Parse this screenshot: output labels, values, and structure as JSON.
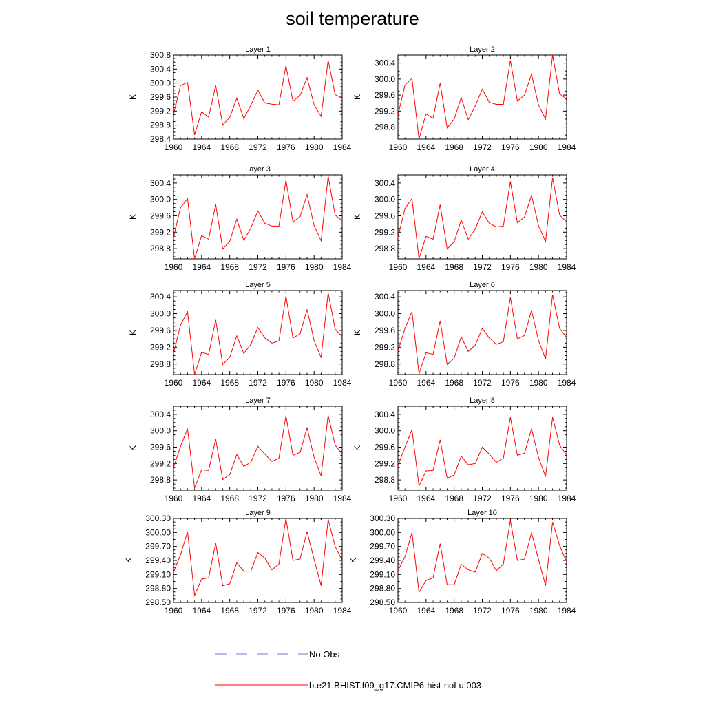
{
  "title": "soil temperature",
  "legend": {
    "items": [
      {
        "label": "No Obs",
        "color": "#7777cc",
        "style": "dashed"
      },
      {
        "label": "b.e21.BHIST.f09_g17.CMIP6-hist-noLu.003",
        "color": "#ff0000",
        "style": "solid"
      }
    ]
  },
  "chart_data": [
    {
      "type": "line",
      "title": "Layer 1",
      "ylabel": "K",
      "xlim": [
        1960,
        1984
      ],
      "ylim": [
        298.4,
        300.8
      ],
      "xticks": [
        "1960",
        "1964",
        "1968",
        "1972",
        "1976",
        "1980",
        "1984"
      ],
      "yticks": [
        "298.4",
        "298.8",
        "299.2",
        "299.6",
        "300.0",
        "300.4",
        "300.8"
      ],
      "series": [
        {
          "color": "#ff0000",
          "x": [
            1960,
            1961,
            1962,
            1963,
            1964,
            1965,
            1966,
            1967,
            1968,
            1969,
            1970,
            1971,
            1972,
            1973,
            1974,
            1975,
            1976,
            1977,
            1978,
            1979,
            1980,
            1981,
            1982,
            1983,
            1984
          ],
          "y": [
            299.1,
            299.93,
            300.02,
            298.52,
            299.18,
            299.03,
            299.93,
            298.8,
            299.02,
            299.57,
            298.98,
            299.37,
            299.8,
            299.43,
            299.4,
            299.38,
            300.5,
            299.48,
            299.65,
            300.15,
            299.38,
            299.05,
            300.65,
            299.67,
            299.57
          ]
        }
      ]
    },
    {
      "type": "line",
      "title": "Layer 2",
      "ylabel": "K",
      "xlim": [
        1960,
        1984
      ],
      "ylim": [
        298.5,
        300.6
      ],
      "xticks": [
        "1960",
        "1964",
        "1968",
        "1972",
        "1976",
        "1980",
        "1984"
      ],
      "yticks": [
        "298.8",
        "299.2",
        "299.6",
        "300.0",
        "300.4"
      ],
      "series": [
        {
          "color": "#ff0000",
          "x": [
            1960,
            1961,
            1962,
            1963,
            1964,
            1965,
            1966,
            1967,
            1968,
            1969,
            1970,
            1971,
            1972,
            1973,
            1974,
            1975,
            1976,
            1977,
            1978,
            1979,
            1980,
            1981,
            1982,
            1983,
            1984
          ],
          "y": [
            299.1,
            299.85,
            300.02,
            298.5,
            299.13,
            299.02,
            299.9,
            298.78,
            299.0,
            299.54,
            298.98,
            299.33,
            299.75,
            299.42,
            299.37,
            299.37,
            300.47,
            299.45,
            299.6,
            300.12,
            299.35,
            299.0,
            300.6,
            299.63,
            299.5
          ]
        }
      ]
    },
    {
      "type": "line",
      "title": "Layer 3",
      "ylabel": "K",
      "xlim": [
        1960,
        1984
      ],
      "ylim": [
        298.55,
        300.6
      ],
      "xticks": [
        "1960",
        "1964",
        "1968",
        "1972",
        "1976",
        "1980",
        "1984"
      ],
      "yticks": [
        "298.8",
        "299.2",
        "299.6",
        "300.0",
        "300.4"
      ],
      "series": [
        {
          "color": "#ff0000",
          "x": [
            1960,
            1961,
            1962,
            1963,
            1964,
            1965,
            1966,
            1967,
            1968,
            1969,
            1970,
            1971,
            1972,
            1973,
            1974,
            1975,
            1976,
            1977,
            1978,
            1979,
            1980,
            1981,
            1982,
            1983,
            1984
          ],
          "y": [
            299.07,
            299.8,
            300.02,
            298.55,
            299.12,
            299.03,
            299.88,
            298.79,
            298.98,
            299.52,
            299.0,
            299.3,
            299.72,
            299.42,
            299.35,
            299.35,
            300.47,
            299.45,
            299.58,
            300.12,
            299.36,
            298.99,
            300.57,
            299.62,
            299.48
          ]
        }
      ]
    },
    {
      "type": "line",
      "title": "Layer 4",
      "ylabel": "K",
      "xlim": [
        1960,
        1984
      ],
      "ylim": [
        298.55,
        300.6
      ],
      "xticks": [
        "1960",
        "1964",
        "1968",
        "1972",
        "1976",
        "1980",
        "1984"
      ],
      "yticks": [
        "298.8",
        "299.2",
        "299.6",
        "300.0",
        "300.4"
      ],
      "series": [
        {
          "color": "#ff0000",
          "x": [
            1960,
            1961,
            1962,
            1963,
            1964,
            1965,
            1966,
            1967,
            1968,
            1969,
            1970,
            1971,
            1972,
            1973,
            1974,
            1975,
            1976,
            1977,
            1978,
            1979,
            1980,
            1981,
            1982,
            1983,
            1984
          ],
          "y": [
            299.07,
            299.78,
            300.02,
            298.55,
            299.1,
            299.03,
            299.87,
            298.79,
            298.97,
            299.5,
            299.03,
            299.28,
            299.7,
            299.42,
            299.33,
            299.35,
            300.44,
            299.43,
            299.57,
            300.1,
            299.36,
            298.97,
            300.53,
            299.62,
            299.45
          ]
        }
      ]
    },
    {
      "type": "line",
      "title": "Layer 5",
      "ylabel": "K",
      "xlim": [
        1960,
        1984
      ],
      "ylim": [
        298.55,
        300.55
      ],
      "xticks": [
        "1960",
        "1964",
        "1968",
        "1972",
        "1976",
        "1980",
        "1984"
      ],
      "yticks": [
        "298.8",
        "299.2",
        "299.6",
        "300.0",
        "300.4"
      ],
      "series": [
        {
          "color": "#ff0000",
          "x": [
            1960,
            1961,
            1962,
            1963,
            1964,
            1965,
            1966,
            1967,
            1968,
            1969,
            1970,
            1971,
            1972,
            1973,
            1974,
            1975,
            1976,
            1977,
            1978,
            1979,
            1980,
            1981,
            1982,
            1983,
            1984
          ],
          "y": [
            299.05,
            299.73,
            300.05,
            298.55,
            299.08,
            299.03,
            299.85,
            298.79,
            298.96,
            299.47,
            299.05,
            299.27,
            299.67,
            299.42,
            299.3,
            299.35,
            300.42,
            299.42,
            299.52,
            300.1,
            299.36,
            298.95,
            300.5,
            299.63,
            299.45
          ]
        }
      ]
    },
    {
      "type": "line",
      "title": "Layer 6",
      "ylabel": "K",
      "xlim": [
        1960,
        1984
      ],
      "ylim": [
        298.55,
        300.55
      ],
      "xticks": [
        "1960",
        "1964",
        "1968",
        "1972",
        "1976",
        "1980",
        "1984"
      ],
      "yticks": [
        "298.8",
        "299.2",
        "299.6",
        "300.0",
        "300.4"
      ],
      "series": [
        {
          "color": "#ff0000",
          "x": [
            1960,
            1961,
            1962,
            1963,
            1964,
            1965,
            1966,
            1967,
            1968,
            1969,
            1970,
            1971,
            1972,
            1973,
            1974,
            1975,
            1976,
            1977,
            1978,
            1979,
            1980,
            1981,
            1982,
            1983,
            1984
          ],
          "y": [
            299.1,
            299.65,
            300.05,
            298.57,
            299.07,
            299.03,
            299.83,
            298.79,
            298.94,
            299.45,
            299.1,
            299.25,
            299.65,
            299.42,
            299.27,
            299.33,
            300.39,
            299.4,
            299.48,
            300.08,
            299.36,
            298.92,
            300.45,
            299.65,
            299.43
          ]
        }
      ]
    },
    {
      "type": "line",
      "title": "Layer 7",
      "ylabel": "K",
      "xlim": [
        1960,
        1984
      ],
      "ylim": [
        298.55,
        300.6
      ],
      "xticks": [
        "1960",
        "1964",
        "1968",
        "1972",
        "1976",
        "1980",
        "1984"
      ],
      "yticks": [
        "298.8",
        "299.2",
        "299.6",
        "300.0",
        "300.4"
      ],
      "series": [
        {
          "color": "#ff0000",
          "x": [
            1960,
            1961,
            1962,
            1963,
            1964,
            1965,
            1966,
            1967,
            1968,
            1969,
            1970,
            1971,
            1972,
            1973,
            1974,
            1975,
            1976,
            1977,
            1978,
            1979,
            1980,
            1981,
            1982,
            1983,
            1984
          ],
          "y": [
            299.1,
            299.62,
            300.05,
            298.6,
            299.05,
            299.03,
            299.8,
            298.81,
            298.93,
            299.42,
            299.13,
            299.23,
            299.62,
            299.43,
            299.25,
            299.33,
            300.37,
            299.4,
            299.47,
            300.07,
            299.35,
            298.9,
            300.38,
            299.65,
            299.43
          ]
        }
      ]
    },
    {
      "type": "line",
      "title": "Layer 8",
      "ylabel": "K",
      "xlim": [
        1960,
        1984
      ],
      "ylim": [
        298.55,
        300.6
      ],
      "xticks": [
        "1960",
        "1964",
        "1968",
        "1972",
        "1976",
        "1980",
        "1984"
      ],
      "yticks": [
        "298.8",
        "299.2",
        "299.6",
        "300.0",
        "300.4"
      ],
      "series": [
        {
          "color": "#ff0000",
          "x": [
            1960,
            1961,
            1962,
            1963,
            1964,
            1965,
            1966,
            1967,
            1968,
            1969,
            1970,
            1971,
            1972,
            1973,
            1974,
            1975,
            1976,
            1977,
            1978,
            1979,
            1980,
            1981,
            1982,
            1983,
            1984
          ],
          "y": [
            299.15,
            299.6,
            300.03,
            298.65,
            299.02,
            299.03,
            299.78,
            298.84,
            298.92,
            299.38,
            299.17,
            299.2,
            299.6,
            299.43,
            299.23,
            299.33,
            300.33,
            299.4,
            299.45,
            300.05,
            299.35,
            298.88,
            300.33,
            299.65,
            299.4
          ]
        }
      ]
    },
    {
      "type": "line",
      "title": "Layer 9",
      "ylabel": "K",
      "xlim": [
        1960,
        1984
      ],
      "ylim": [
        298.5,
        300.3
      ],
      "xticks": [
        "1960",
        "1964",
        "1968",
        "1972",
        "1976",
        "1980",
        "1984"
      ],
      "yticks": [
        "298.50",
        "298.80",
        "299.10",
        "299.40",
        "299.70",
        "300.00",
        "300.30"
      ],
      "series": [
        {
          "color": "#ff0000",
          "x": [
            1960,
            1961,
            1962,
            1963,
            1964,
            1965,
            1966,
            1967,
            1968,
            1969,
            1970,
            1971,
            1972,
            1973,
            1974,
            1975,
            1976,
            1977,
            1978,
            1979,
            1980,
            1981,
            1982,
            1983,
            1984
          ],
          "y": [
            299.15,
            299.52,
            300.02,
            298.65,
            299.0,
            299.03,
            299.77,
            298.86,
            298.9,
            299.35,
            299.17,
            299.17,
            299.57,
            299.45,
            299.2,
            299.32,
            300.3,
            299.4,
            299.43,
            300.02,
            299.42,
            298.86,
            300.28,
            299.7,
            299.4
          ]
        }
      ]
    },
    {
      "type": "line",
      "title": "Layer 10",
      "ylabel": "K",
      "xlim": [
        1960,
        1984
      ],
      "ylim": [
        298.5,
        300.3
      ],
      "xticks": [
        "1960",
        "1964",
        "1968",
        "1972",
        "1976",
        "1980",
        "1984"
      ],
      "yticks": [
        "298.50",
        "298.80",
        "299.10",
        "299.40",
        "299.70",
        "300.00",
        "300.30"
      ],
      "series": [
        {
          "color": "#ff0000",
          "x": [
            1960,
            1961,
            1962,
            1963,
            1964,
            1965,
            1966,
            1967,
            1968,
            1969,
            1970,
            1971,
            1972,
            1973,
            1974,
            1975,
            1976,
            1977,
            1978,
            1979,
            1980,
            1981,
            1982,
            1983,
            1984
          ],
          "y": [
            299.18,
            299.48,
            300.0,
            298.72,
            298.97,
            299.03,
            299.76,
            298.88,
            298.88,
            299.32,
            299.2,
            299.15,
            299.55,
            299.45,
            299.18,
            299.32,
            300.26,
            299.4,
            299.43,
            299.99,
            299.42,
            298.86,
            300.22,
            299.72,
            299.37
          ]
        }
      ]
    }
  ]
}
